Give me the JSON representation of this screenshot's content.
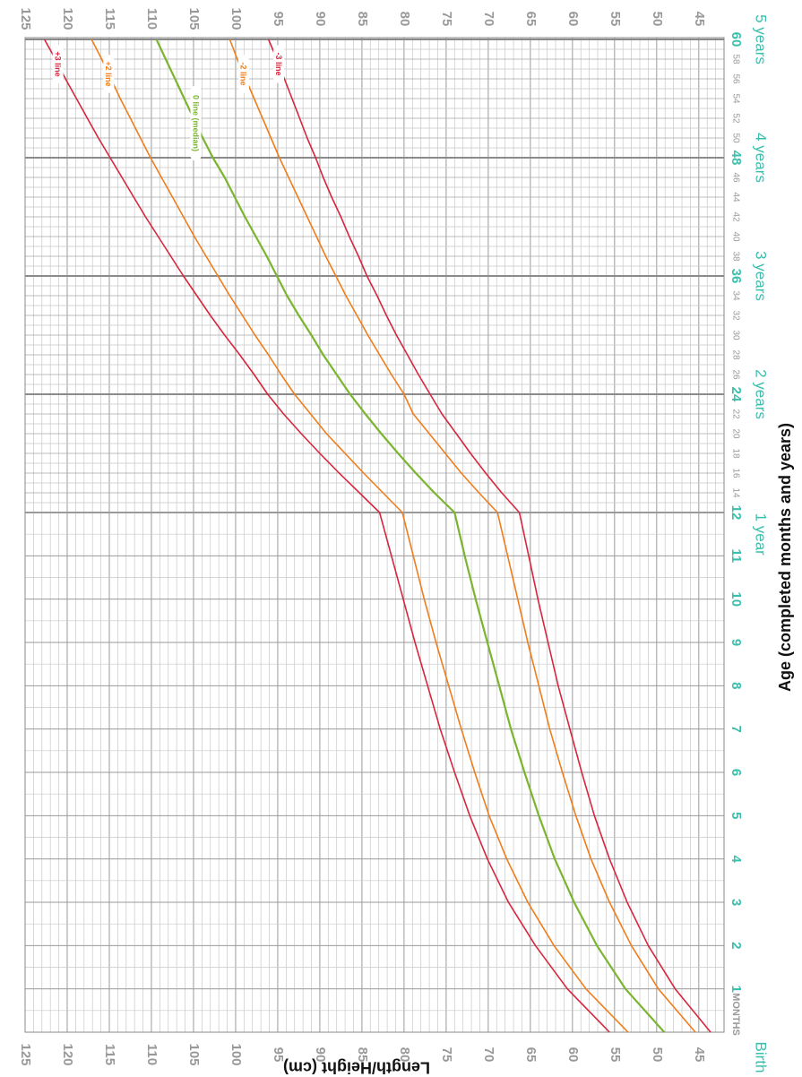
{
  "chart_data": {
    "type": "line",
    "title": "",
    "xlabel": "Age (completed months and years)",
    "ylabel": "Length/Height (cm)",
    "x_unit_word": "MONTHS",
    "ylim": [
      42,
      125
    ],
    "xlim": [
      0,
      60
    ],
    "y_ticks": [
      45,
      50,
      55,
      60,
      65,
      70,
      75,
      80,
      85,
      90,
      95,
      100,
      105,
      110,
      115,
      120,
      125
    ],
    "x_ticks_major": [
      1,
      2,
      3,
      4,
      5,
      6,
      7,
      8,
      9,
      10,
      11,
      12,
      24,
      36,
      48,
      60
    ],
    "x_ticks_minor": [
      14,
      16,
      18,
      20,
      22,
      26,
      28,
      30,
      32,
      34,
      38,
      40,
      42,
      44,
      46,
      50,
      52,
      54,
      56,
      58
    ],
    "year_labels": [
      {
        "x": 0,
        "text": "Birth"
      },
      {
        "x": 11.5,
        "text": "1 year"
      },
      {
        "x": 24,
        "text": "2 years"
      },
      {
        "x": 36,
        "text": "3 years"
      },
      {
        "x": 48,
        "text": "4 years"
      },
      {
        "x": 60,
        "text": "5 years"
      }
    ],
    "grid": true,
    "x": [
      0,
      1,
      2,
      3,
      4,
      5,
      6,
      7,
      8,
      9,
      10,
      11,
      12,
      14,
      16,
      18,
      20,
      22,
      24,
      26,
      28,
      30,
      32,
      34,
      36,
      38,
      40,
      42,
      44,
      46,
      48,
      50,
      52,
      54,
      56,
      58,
      60
    ],
    "series": [
      {
        "name": "+3 line",
        "color": "#d7263d",
        "width": 1.6,
        "values": [
          55.6,
          60.6,
          64.4,
          67.6,
          70.1,
          72.2,
          74.0,
          75.7,
          77.2,
          78.7,
          80.1,
          81.5,
          82.9,
          85.3,
          87.7,
          90.0,
          92.2,
          94.3,
          96.2,
          97.8,
          99.5,
          101.3,
          103.0,
          104.6,
          106.2,
          107.7,
          109.2,
          110.7,
          112.1,
          113.5,
          114.9,
          116.3,
          117.6,
          118.9,
          120.2,
          121.4,
          122.7
        ]
      },
      {
        "name": "+2 line",
        "color": "#f07d1a",
        "width": 1.6,
        "values": [
          53.4,
          58.4,
          62.2,
          65.3,
          67.8,
          69.9,
          71.6,
          73.2,
          74.7,
          76.2,
          77.6,
          78.9,
          80.2,
          82.5,
          84.8,
          87.0,
          89.2,
          91.1,
          93.0,
          94.6,
          96.1,
          97.7,
          99.2,
          100.7,
          102.1,
          103.5,
          104.9,
          106.2,
          107.5,
          108.8,
          110.1,
          111.3,
          112.5,
          113.7,
          114.8,
          115.9,
          117.1
        ]
      },
      {
        "name": "0 line (median)",
        "color": "#7ab52e",
        "width": 2.2,
        "values": [
          49.1,
          53.7,
          57.1,
          59.8,
          62.1,
          64.0,
          65.7,
          67.3,
          68.7,
          70.1,
          71.5,
          72.8,
          74.0,
          76.4,
          78.6,
          80.7,
          82.7,
          84.6,
          86.4,
          88.0,
          89.6,
          91.0,
          92.5,
          93.9,
          95.1,
          96.3,
          97.6,
          98.9,
          100.1,
          101.3,
          102.7,
          103.9,
          105.0,
          106.1,
          107.2,
          108.3,
          109.4
        ]
      },
      {
        "name": "-2 line",
        "color": "#f07d1a",
        "width": 1.6,
        "values": [
          45.4,
          49.8,
          53.0,
          55.6,
          57.8,
          59.6,
          61.2,
          62.7,
          64.0,
          65.3,
          66.5,
          67.7,
          68.9,
          71.1,
          73.2,
          75.1,
          77.0,
          78.9,
          80.0,
          81.5,
          82.9,
          84.3,
          85.6,
          86.9,
          88.1,
          89.3,
          90.4,
          91.5,
          92.6,
          93.7,
          94.8,
          95.8,
          96.8,
          97.8,
          98.8,
          99.8,
          100.7
        ]
      },
      {
        "name": "-3 line",
        "color": "#d7263d",
        "width": 1.6,
        "values": [
          43.6,
          47.8,
          51.0,
          53.5,
          55.6,
          57.4,
          58.9,
          60.3,
          61.7,
          62.9,
          64.1,
          65.2,
          66.3,
          68.4,
          70.3,
          72.1,
          73.8,
          75.5,
          76.9,
          78.3,
          79.6,
          80.9,
          82.1,
          83.2,
          84.4,
          85.4,
          86.5,
          87.5,
          88.6,
          89.6,
          90.5,
          91.5,
          92.4,
          93.3,
          94.2,
          95.1,
          96.1
        ]
      }
    ],
    "line_labels": [
      "+3 line",
      "+2 line",
      "0 line (median)",
      "-2 line",
      "-3 line"
    ]
  }
}
